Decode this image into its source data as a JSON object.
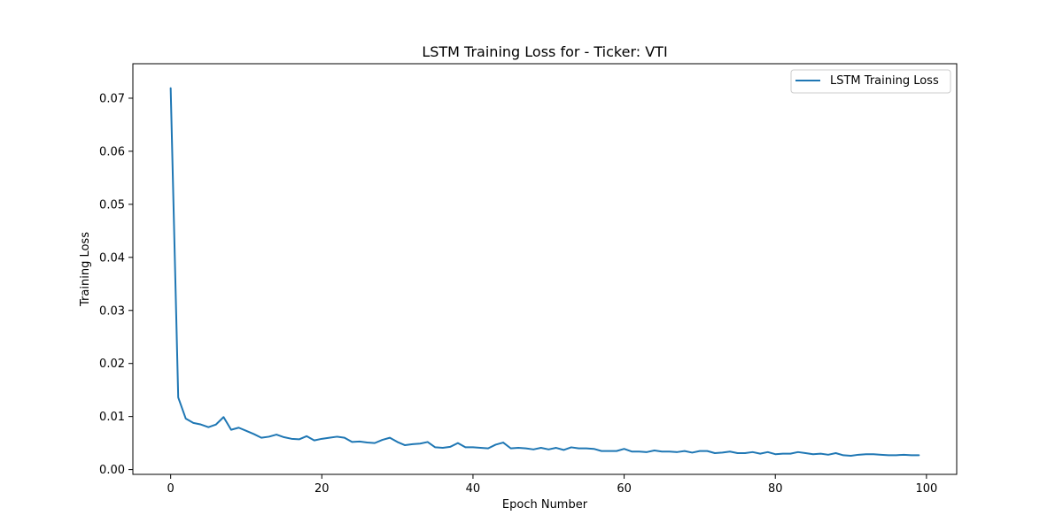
{
  "chart_data": {
    "type": "line",
    "title": "LSTM Training Loss for - Ticker: VTI",
    "xlabel": "Epoch Number",
    "ylabel": "Training Loss",
    "xlim": [
      -5,
      104
    ],
    "ylim": [
      -0.0009,
      0.0765
    ],
    "xticks": [
      0,
      20,
      40,
      60,
      80,
      100
    ],
    "yticks": [
      0.0,
      0.01,
      0.02,
      0.03,
      0.04,
      0.05,
      0.06,
      0.07
    ],
    "xtick_labels": [
      "0",
      "20",
      "40",
      "60",
      "80",
      "100"
    ],
    "ytick_labels": [
      "0.00",
      "0.01",
      "0.02",
      "0.03",
      "0.04",
      "0.05",
      "0.06",
      "0.07"
    ],
    "grid": false,
    "legend_position": "top-right",
    "colors": {
      "series": "#1f77b4",
      "frame": "#000000"
    },
    "series": [
      {
        "name": "LSTM Training Loss",
        "x": [
          0,
          1,
          2,
          3,
          4,
          5,
          6,
          7,
          8,
          9,
          10,
          11,
          12,
          13,
          14,
          15,
          16,
          17,
          18,
          19,
          20,
          21,
          22,
          23,
          24,
          25,
          26,
          27,
          28,
          29,
          30,
          31,
          32,
          33,
          34,
          35,
          36,
          37,
          38,
          39,
          40,
          41,
          42,
          43,
          44,
          45,
          46,
          47,
          48,
          49,
          50,
          51,
          52,
          53,
          54,
          55,
          56,
          57,
          58,
          59,
          60,
          61,
          62,
          63,
          64,
          65,
          66,
          67,
          68,
          69,
          70,
          71,
          72,
          73,
          74,
          75,
          76,
          77,
          78,
          79,
          80,
          81,
          82,
          83,
          84,
          85,
          86,
          87,
          88,
          89,
          90,
          91,
          92,
          93,
          94,
          95,
          96,
          97,
          98,
          99
        ],
        "y": [
          0.0719,
          0.0136,
          0.0096,
          0.0088,
          0.0085,
          0.008,
          0.0085,
          0.0099,
          0.0075,
          0.0079,
          0.0073,
          0.0067,
          0.006,
          0.0062,
          0.0066,
          0.0061,
          0.0058,
          0.0057,
          0.0063,
          0.0055,
          0.0058,
          0.006,
          0.0062,
          0.006,
          0.0052,
          0.0053,
          0.0051,
          0.005,
          0.0056,
          0.006,
          0.0052,
          0.0046,
          0.0048,
          0.0049,
          0.0052,
          0.0042,
          0.0041,
          0.0043,
          0.005,
          0.0042,
          0.0042,
          0.0041,
          0.004,
          0.0047,
          0.0051,
          0.004,
          0.0041,
          0.004,
          0.0038,
          0.0041,
          0.0038,
          0.0041,
          0.0037,
          0.0042,
          0.004,
          0.004,
          0.0039,
          0.0035,
          0.0035,
          0.0035,
          0.0039,
          0.0034,
          0.0034,
          0.0033,
          0.0036,
          0.0034,
          0.0034,
          0.0033,
          0.0035,
          0.0032,
          0.0035,
          0.0035,
          0.0031,
          0.0032,
          0.0034,
          0.0031,
          0.0031,
          0.0033,
          0.003,
          0.0033,
          0.0029,
          0.003,
          0.003,
          0.0033,
          0.0031,
          0.0029,
          0.003,
          0.0028,
          0.0031,
          0.0027,
          0.0026,
          0.0028,
          0.0029,
          0.0029,
          0.0028,
          0.0027,
          0.0027,
          0.0028,
          0.0027,
          0.0027
        ]
      }
    ]
  }
}
